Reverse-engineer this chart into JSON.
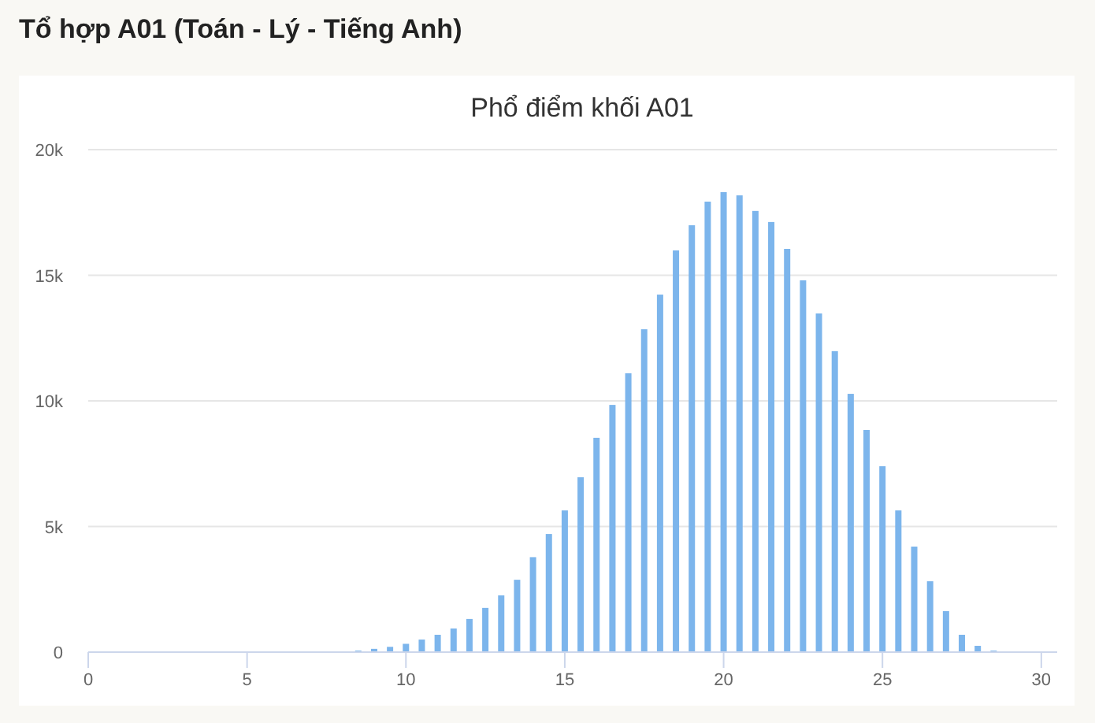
{
  "chart_data": {
    "type": "bar",
    "title": "Tổ hợp A01 (Toán - Lý - Tiếng Anh)",
    "subtitle": "Phổ điểm khối A01",
    "x": [
      8.5,
      9,
      9.5,
      10,
      10.5,
      11,
      11.5,
      12,
      12.5,
      13,
      13.5,
      14,
      14.5,
      15,
      15.5,
      16,
      16.5,
      17,
      17.5,
      18,
      18.5,
      19,
      19.5,
      20,
      20.5,
      21,
      21.5,
      22,
      22.5,
      23,
      23.5,
      24,
      24.5,
      25,
      25.5,
      26,
      26.5,
      27,
      27.5,
      28,
      28.5
    ],
    "values": [
      60,
      130,
      210,
      330,
      500,
      690,
      940,
      1320,
      1760,
      2260,
      2880,
      3780,
      4700,
      5640,
      6960,
      8530,
      9840,
      11100,
      12850,
      14230,
      15990,
      16990,
      17930,
      18310,
      18180,
      17560,
      17120,
      16050,
      14800,
      13480,
      11980,
      10280,
      8840,
      7400,
      5640,
      4200,
      2820,
      1630,
      690,
      250,
      60
    ],
    "color": "#7cb5ec",
    "xlim": [
      0,
      30.5
    ],
    "xticks": [
      0,
      5,
      10,
      15,
      20,
      25,
      30
    ],
    "ylim": [
      0,
      20000
    ],
    "yticks": [
      {
        "value": 0,
        "label": "0"
      },
      {
        "value": 5000,
        "label": "5k"
      },
      {
        "value": 10000,
        "label": "10k"
      },
      {
        "value": 15000,
        "label": "15k"
      },
      {
        "value": 20000,
        "label": "20k"
      }
    ],
    "grid": "y"
  }
}
